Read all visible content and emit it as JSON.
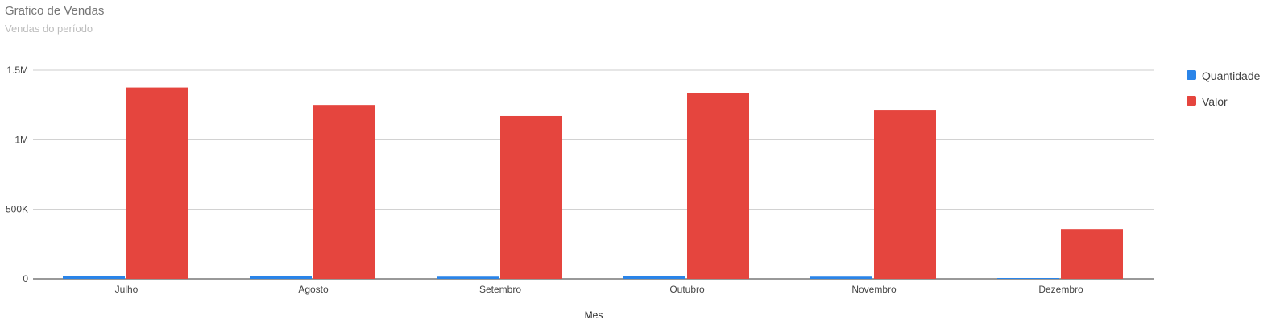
{
  "header": {
    "title": "Grafico de Vendas",
    "subtitle": "Vendas do período"
  },
  "chart_data": {
    "type": "bar",
    "title": "Grafico de Vendas",
    "subtitle": "Vendas do período",
    "xlabel": "Mes",
    "ylabel": "",
    "categories": [
      "Julho",
      "Agosto",
      "Setembro",
      "Outubro",
      "Novembro",
      "Dezembro"
    ],
    "series": [
      {
        "name": "Quantidade",
        "color": "#2a84e8",
        "values": [
          20000,
          19000,
          16000,
          19000,
          16000,
          4000
        ]
      },
      {
        "name": "Valor",
        "color": "#e5453e",
        "values": [
          1375000,
          1250000,
          1170000,
          1335000,
          1210000,
          358000
        ]
      }
    ],
    "ylim": [
      0,
      1500000
    ],
    "yticks": [
      {
        "value": 0,
        "label": "0"
      },
      {
        "value": 500000,
        "label": "500K"
      },
      {
        "value": 1000000,
        "label": "1M"
      },
      {
        "value": 1500000,
        "label": "1.5M"
      }
    ],
    "grid": true,
    "legend_position": "right"
  }
}
